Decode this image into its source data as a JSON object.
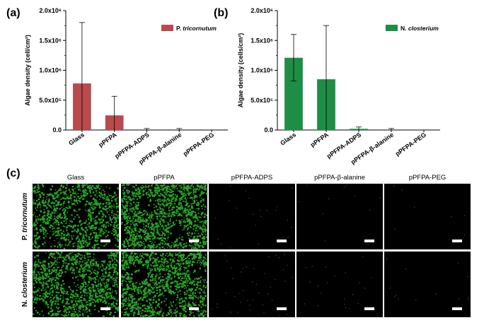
{
  "chart_data": [
    {
      "panel": "(a)",
      "type": "bar",
      "categories": [
        "Glass",
        "pPFPA",
        "pPFPA-ADPS",
        "pPFPA-β-alanine",
        "pPFPA-PEG"
      ],
      "series": [
        {
          "name": "P. tricornutum",
          "values": [
            780000,
            245000,
            0,
            0,
            0
          ],
          "errors": [
            1020000,
            320000,
            25000,
            25000,
            0
          ]
        }
      ],
      "ylabel": "Algae density (cell/cm²)",
      "ylim": [
        0,
        2000000
      ],
      "yticks": [
        0,
        500000,
        1000000,
        1500000,
        2000000
      ],
      "ytick_labels": [
        "0.0",
        "5.0x10⁵",
        "1.0x10⁶",
        "1.5x10⁶",
        "2.0x10⁶"
      ],
      "color": "#b94a4d",
      "legend_position": "top-right"
    },
    {
      "panel": "(b)",
      "type": "bar",
      "categories": [
        "Glass",
        "pPFPA",
        "pPFPA-ADPS",
        "pPFPA-β-alanine",
        "pPFPA-PEG"
      ],
      "series": [
        {
          "name": "N. closterium",
          "values": [
            1210000,
            850000,
            20000,
            0,
            0
          ],
          "errors": [
            390000,
            900000,
            30000,
            25000,
            0
          ]
        }
      ],
      "ylabel": "Algae density (cells/cm²)",
      "ylim": [
        0,
        2000000
      ],
      "yticks": [
        0,
        500000,
        1000000,
        1500000,
        2000000
      ],
      "ytick_labels": [
        "0.0",
        "5.0x10⁵",
        "1.0x10⁶",
        "1.5x10⁶",
        "2.0x10⁶"
      ],
      "color": "#1e8e46",
      "legend_position": "top-right"
    }
  ],
  "panel_c": {
    "letter": "(c)",
    "columns": [
      "Glass",
      "pPFPA",
      "pPFPA-ADPS",
      "pPFPA-β-alanine",
      "pPFPA-PEG"
    ],
    "rows": [
      "P. tricornutum",
      "N. closterium"
    ],
    "coverage": [
      [
        0.55,
        0.7,
        0.01,
        0.005,
        0.003
      ],
      [
        0.6,
        0.65,
        0.02,
        0.01,
        0.006
      ]
    ],
    "cell_color": "#2fbf2a"
  }
}
